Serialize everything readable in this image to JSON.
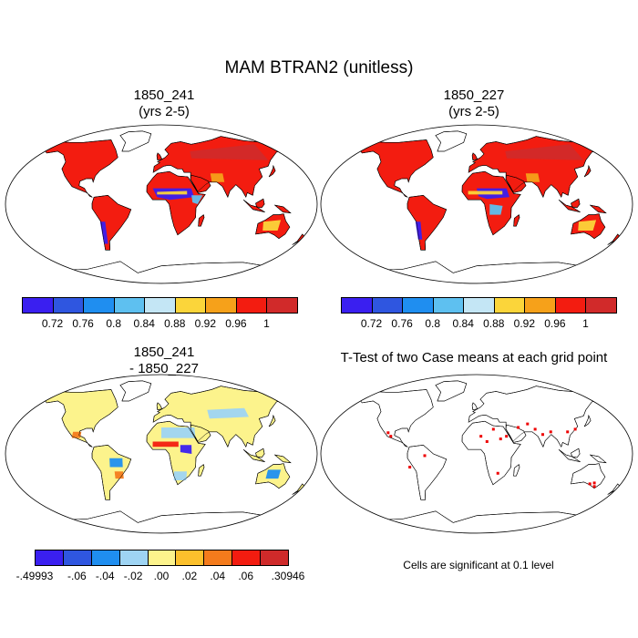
{
  "title": "MAM BTRAN2 (unitless)",
  "panels": [
    {
      "title_line1": "1850_241",
      "title_line2": "(yrs 2-5)"
    },
    {
      "title_line1": "1850_227",
      "title_line2": "(yrs 2-5)"
    },
    {
      "title_line1": "1850_241",
      "title_line2": "- 1850_227"
    },
    {
      "title_line1": "T-Test of two Case means at each grid point",
      "title_line2": ""
    }
  ],
  "significance_note": "Cells are significant at 0.1 level",
  "colorbars": {
    "absolute": {
      "colors": [
        "#3a1ff0",
        "#2f56e0",
        "#1f8ef0",
        "#5ec0f0",
        "#c4e6f5",
        "#fbd53a",
        "#f6a11a",
        "#f31c10",
        "#d12a2a"
      ],
      "labels": [
        "0.72",
        "0.76",
        "0.8",
        "0.84",
        "0.88",
        "0.92",
        "0.96",
        "1"
      ]
    },
    "difference": {
      "colors": [
        "#3a1ff0",
        "#2f56e0",
        "#1f8ef0",
        "#9ed4f3",
        "#fcf38c",
        "#fbc02c",
        "#f47b1c",
        "#f31c10",
        "#cf2a2a"
      ],
      "labels": [
        "-.49993",
        "-.06",
        "-.04",
        "-.02",
        ".00",
        ".02",
        ".04",
        ".06",
        ".30946"
      ]
    }
  }
}
